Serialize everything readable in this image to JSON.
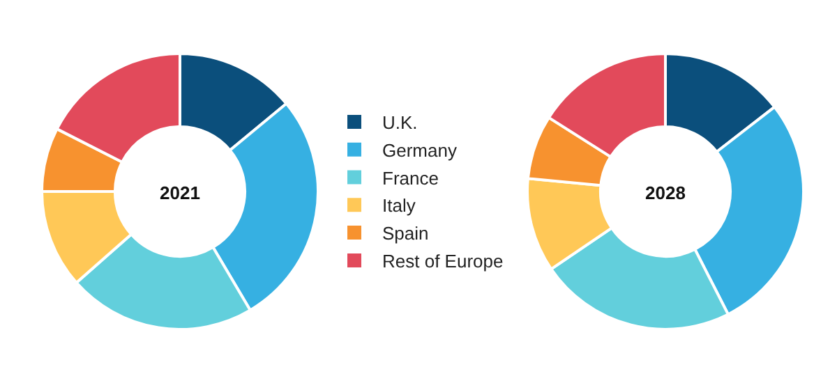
{
  "chart_data": {
    "type": "donut",
    "categories": [
      "U.K.",
      "Germany",
      "France",
      "Italy",
      "Spain",
      "Rest of Europe"
    ],
    "colors": [
      "#0b4f7c",
      "#36b0e2",
      "#62cfdc",
      "#ffc857",
      "#f7922f",
      "#e24a5b"
    ],
    "legend": "center",
    "series": [
      {
        "name": "2021",
        "values": [
          14,
          27.5,
          22,
          11.5,
          7.5,
          17.5
        ]
      },
      {
        "name": "2028",
        "values": [
          14.5,
          28,
          23,
          11,
          7.5,
          16
        ]
      }
    ]
  }
}
